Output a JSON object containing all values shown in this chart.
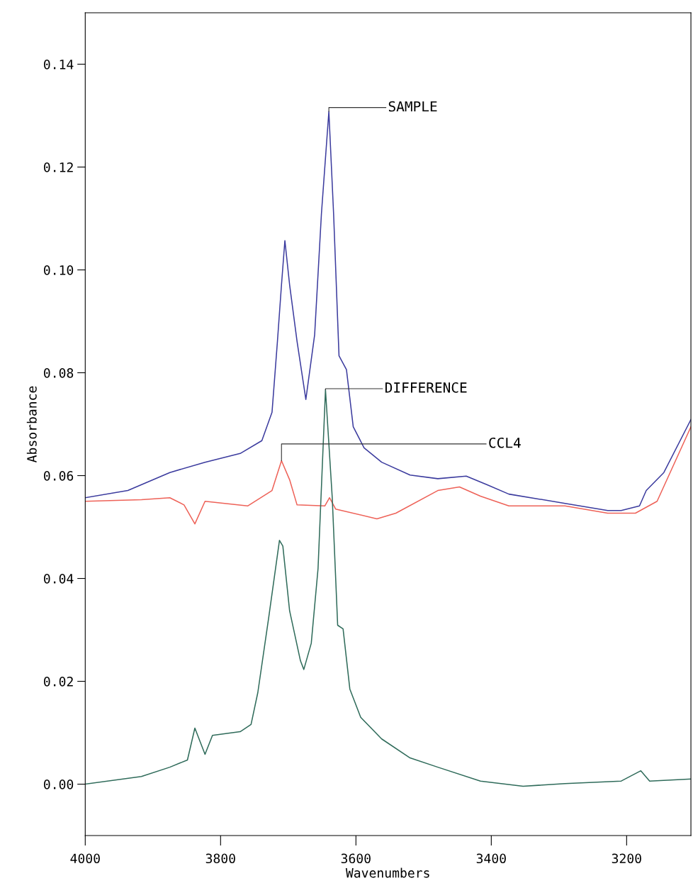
{
  "chart_data": {
    "type": "line",
    "xlabel": "Wavenumbers",
    "ylabel": "Absorbance",
    "xlim": [
      4000,
      3105
    ],
    "xticks": [
      4000,
      3800,
      3600,
      3400,
      3200
    ],
    "ylim": [
      -0.01,
      0.15
    ],
    "yticks": [
      {
        "value": 0,
        "label": "0.00"
      },
      {
        "value": 0.02,
        "label": "0.02"
      },
      {
        "value": 0.04,
        "label": "0.04"
      },
      {
        "value": 0.06,
        "label": "0.06"
      },
      {
        "value": 0.08,
        "label": "0.08"
      },
      {
        "value": 0.1,
        "label": "0.10"
      },
      {
        "value": 0.12,
        "label": "0.12"
      },
      {
        "value": 0.14,
        "label": "0.14"
      }
    ],
    "grid": false,
    "legend": false,
    "series": [
      {
        "color": "#3b3b9e",
        "x": [
          4000,
          3937,
          3875,
          3823,
          3771,
          3739,
          3724,
          3716,
          3710,
          3705,
          3698,
          3687,
          3674,
          3661,
          3651,
          3640,
          3633,
          3625,
          3614,
          3604,
          3588,
          3562,
          3520,
          3479,
          3437,
          3406,
          3374,
          3291,
          3228,
          3208,
          3181,
          3171,
          3145,
          3105
        ],
        "values": [
          0.0557,
          0.0571,
          0.0606,
          0.0626,
          0.0643,
          0.0668,
          0.0723,
          0.0861,
          0.0971,
          0.1057,
          0.0971,
          0.0861,
          0.0748,
          0.0874,
          0.1109,
          0.1308,
          0.1109,
          0.0833,
          0.0806,
          0.0695,
          0.0654,
          0.0626,
          0.0601,
          0.0594,
          0.0599,
          0.0582,
          0.0564,
          0.0546,
          0.0532,
          0.0532,
          0.0541,
          0.0571,
          0.0606,
          0.0709
        ]
      },
      {
        "color": "#ee6258",
        "x": [
          4000,
          3917,
          3875,
          3854,
          3838,
          3823,
          3760,
          3724,
          3710,
          3698,
          3687,
          3646,
          3639,
          3630,
          3569,
          3541,
          3479,
          3447,
          3416,
          3374,
          3291,
          3228,
          3187,
          3155,
          3105
        ],
        "values": [
          0.055,
          0.0553,
          0.0557,
          0.0543,
          0.0506,
          0.055,
          0.0541,
          0.0571,
          0.0629,
          0.0592,
          0.0543,
          0.0541,
          0.0557,
          0.0535,
          0.0516,
          0.0527,
          0.0571,
          0.0578,
          0.056,
          0.0541,
          0.0541,
          0.0527,
          0.0527,
          0.055,
          0.0695
        ]
      },
      {
        "color": "#2f6b5a",
        "x": [
          4000,
          3917,
          3875,
          3849,
          3838,
          3823,
          3812,
          3771,
          3755,
          3745,
          3729,
          3713,
          3708,
          3698,
          3682,
          3677,
          3666,
          3656,
          3645,
          3635,
          3627,
          3619,
          3609,
          3593,
          3562,
          3520,
          3479,
          3416,
          3353,
          3291,
          3208,
          3179,
          3166,
          3105
        ],
        "values": [
          0.0,
          0.0015,
          0.0033,
          0.0047,
          0.0109,
          0.0058,
          0.0095,
          0.0102,
          0.0116,
          0.0178,
          0.0323,
          0.0474,
          0.0463,
          0.0337,
          0.024,
          0.0223,
          0.0274,
          0.0419,
          0.0767,
          0.0557,
          0.0309,
          0.0302,
          0.0185,
          0.013,
          0.0088,
          0.0051,
          0.0033,
          0.0006,
          -0.0004,
          0.0001,
          0.0006,
          0.0026,
          0.0006,
          0.001
        ]
      }
    ],
    "annotations": [
      {
        "text": "SAMPLE",
        "x": 3640,
        "y": 0.1308
      },
      {
        "text": "DIFFERENCE",
        "x": 3645,
        "y": 0.0767
      },
      {
        "text": "CCL4",
        "x": 3710,
        "y": 0.0629
      }
    ]
  }
}
